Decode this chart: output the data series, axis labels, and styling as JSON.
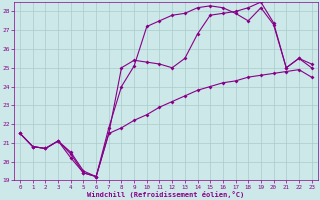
{
  "xlabel": "Windchill (Refroidissement éolien,°C)",
  "bg_color": "#cce8e8",
  "line_color": "#880088",
  "grid_color": "#aacccc",
  "xlim": [
    -0.5,
    23.5
  ],
  "ylim": [
    19,
    28.5
  ],
  "yticks": [
    19,
    20,
    21,
    22,
    23,
    24,
    25,
    26,
    27,
    28
  ],
  "xticks": [
    0,
    1,
    2,
    3,
    4,
    5,
    6,
    7,
    8,
    9,
    10,
    11,
    12,
    13,
    14,
    15,
    16,
    17,
    18,
    19,
    20,
    21,
    22,
    23
  ],
  "s1_x": [
    0,
    1,
    2,
    3,
    4,
    5,
    6,
    7,
    8,
    9,
    10,
    11,
    12,
    13,
    14,
    15,
    16,
    17,
    18,
    19,
    20,
    21,
    22,
    23
  ],
  "s1_y": [
    21.5,
    20.8,
    20.7,
    21.1,
    20.5,
    19.5,
    19.2,
    21.5,
    21.8,
    22.2,
    22.5,
    22.9,
    23.2,
    23.5,
    23.8,
    24.0,
    24.2,
    24.3,
    24.5,
    24.6,
    24.7,
    24.8,
    24.9,
    24.5
  ],
  "s2_x": [
    0,
    1,
    2,
    3,
    4,
    5,
    6,
    7,
    8,
    9,
    10,
    11,
    12,
    13,
    14,
    15,
    16,
    17,
    18,
    19,
    20,
    21,
    22,
    23
  ],
  "s2_y": [
    21.5,
    20.8,
    20.7,
    21.1,
    20.2,
    19.4,
    19.2,
    21.8,
    24.0,
    25.1,
    27.2,
    27.5,
    27.8,
    27.9,
    28.2,
    28.3,
    28.2,
    27.9,
    27.5,
    28.2,
    27.3,
    25.0,
    25.5,
    25.2
  ],
  "s3_x": [
    0,
    1,
    2,
    3,
    4,
    5,
    6,
    7,
    8,
    9,
    10,
    11,
    12,
    13,
    14,
    15,
    16,
    17,
    18,
    19,
    20,
    21,
    22,
    23
  ],
  "s3_y": [
    21.5,
    20.8,
    20.7,
    21.1,
    20.4,
    19.4,
    19.2,
    21.5,
    25.0,
    25.4,
    25.3,
    25.2,
    25.0,
    25.5,
    26.8,
    27.8,
    27.9,
    28.0,
    28.2,
    28.5,
    27.4,
    25.0,
    25.5,
    25.0
  ]
}
